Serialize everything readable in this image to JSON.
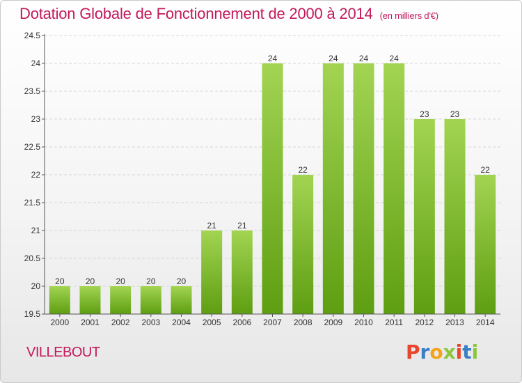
{
  "header": {
    "title": "Dotation Globale de Fonctionnement de 2000 à 2014",
    "subtitle": "(en milliers d'€)"
  },
  "footer": {
    "commune": "VILLEBOUT",
    "logo_letters": [
      "P",
      "r",
      "o",
      "x",
      "i",
      "t",
      "i"
    ],
    "logo_colors": [
      "#e8452c",
      "#3a7fc6",
      "#f3a21b",
      "#8cc63f",
      "#e8452c",
      "#3a7fc6",
      "#8cc63f"
    ]
  },
  "colors": {
    "bar_top": "#a2d452",
    "bar_bottom": "#5e9e12",
    "axis": "#555555",
    "grid": "#d6d6d6",
    "label": "#333333"
  },
  "chart_data": {
    "type": "bar",
    "title": "Dotation Globale de Fonctionnement de 2000 à 2014",
    "subtitle": "(en milliers d'€)",
    "categories": [
      "2000",
      "2001",
      "2002",
      "2003",
      "2004",
      "2005",
      "2006",
      "2007",
      "2008",
      "2009",
      "2010",
      "2011",
      "2012",
      "2013",
      "2014"
    ],
    "values": [
      20,
      20,
      20,
      20,
      20,
      21,
      21,
      24,
      22,
      24,
      24,
      24,
      23,
      23,
      22
    ],
    "data_labels": [
      "20",
      "20",
      "20",
      "20",
      "20",
      "21",
      "21",
      "24",
      "22",
      "24",
      "24",
      "24",
      "23",
      "23",
      "22"
    ],
    "ylim": [
      19.5,
      24.5
    ],
    "yticks": [
      19.5,
      20,
      20.5,
      21,
      21.5,
      22,
      22.5,
      23,
      23.5,
      24,
      24.5
    ],
    "ytick_labels": [
      "19.5",
      "20",
      "20.5",
      "21",
      "21.5",
      "22",
      "22.5",
      "23",
      "23.5",
      "24",
      "24.5"
    ],
    "grid": true,
    "legend": "none"
  }
}
